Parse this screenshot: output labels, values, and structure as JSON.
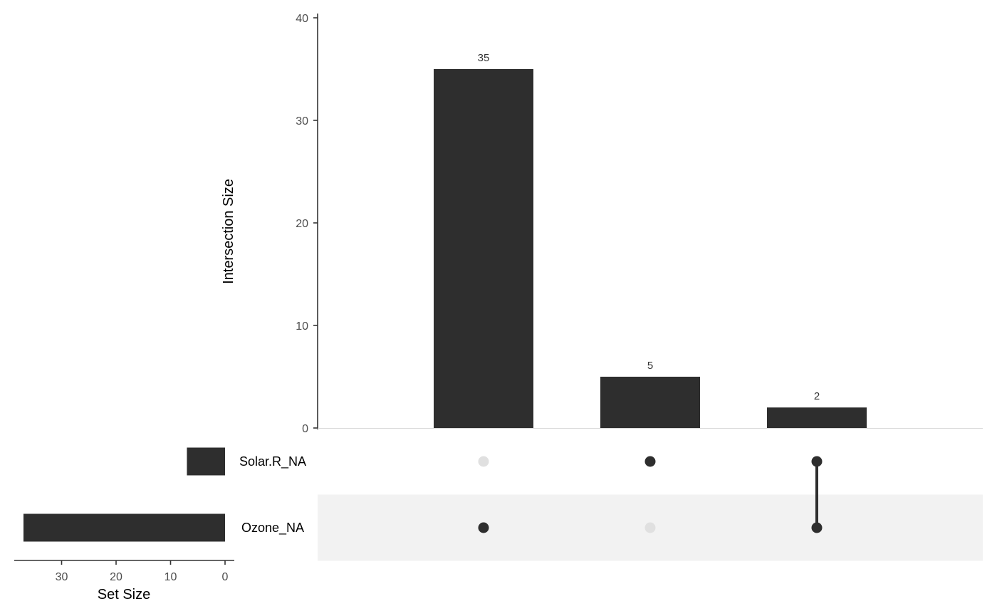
{
  "chart_data": {
    "type": "bar",
    "subtype": "upset",
    "intersection_axis": {
      "ylabel": "Intersection Size",
      "ylim": [
        0,
        40
      ],
      "ticks": [
        0,
        10,
        20,
        30,
        40
      ]
    },
    "intersections": [
      {
        "value": 35,
        "members": [
          "Ozone_NA"
        ]
      },
      {
        "value": 5,
        "members": [
          "Solar.R_NA"
        ]
      },
      {
        "value": 2,
        "members": [
          "Solar.R_NA",
          "Ozone_NA"
        ]
      }
    ],
    "sets": [
      {
        "name": "Solar.R_NA",
        "size": 7
      },
      {
        "name": "Ozone_NA",
        "size": 37
      }
    ],
    "set_size_axis": {
      "xlabel": "Set Size",
      "ticks": [
        30,
        20,
        10,
        0
      ],
      "xlim": [
        38,
        0
      ]
    },
    "colors": {
      "bar": "#2e2e2e",
      "dot_active": "#2e2e2e",
      "dot_inactive": "#e0e0e0",
      "stripe": "#f2f2f2",
      "axis": "#333333"
    }
  }
}
